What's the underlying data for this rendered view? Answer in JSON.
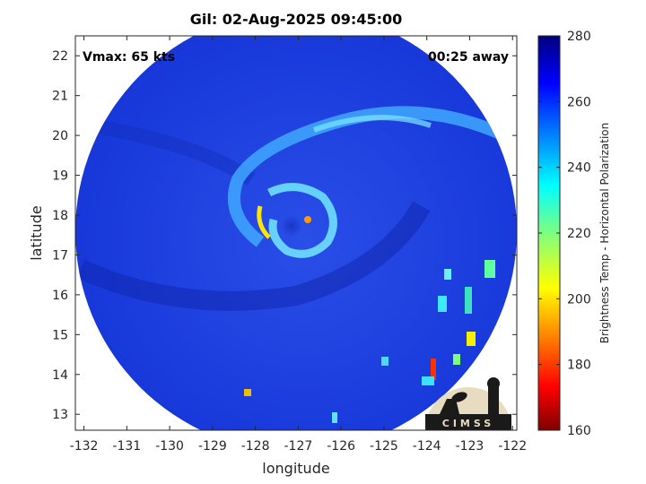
{
  "chart_data": {
    "type": "heatmap",
    "title": "Gil: 02-Aug-2025 09:45:00",
    "xlabel": "longitude",
    "ylabel": "latitude",
    "xlim": [
      -132.2,
      -121.9
    ],
    "ylim": [
      12.6,
      22.5
    ],
    "x_ticks": [
      -132,
      -131,
      -130,
      -129,
      -128,
      -127,
      -126,
      -125,
      -124,
      -123,
      -122
    ],
    "y_ticks": [
      13,
      14,
      15,
      16,
      17,
      18,
      19,
      20,
      21,
      22
    ],
    "storm_center": {
      "lon": -126.8,
      "lat": 17.8
    },
    "annotations": {
      "vmax": "Vmax: 65 kts",
      "time_offset": "00:25 away"
    },
    "colorbar": {
      "label": "Brightness Temp - Horizontal Polarization",
      "min": 160,
      "max": 280,
      "ticks": [
        160,
        180,
        200,
        220,
        240,
        260,
        280
      ],
      "colormap": "jet"
    }
  },
  "logo": {
    "text": "CIMSS",
    "bg_color": "#e8dcc0",
    "fg_color": "#1a1a1a"
  },
  "colors": {
    "background_field": "#1a3fe0",
    "frame": "#262626"
  }
}
